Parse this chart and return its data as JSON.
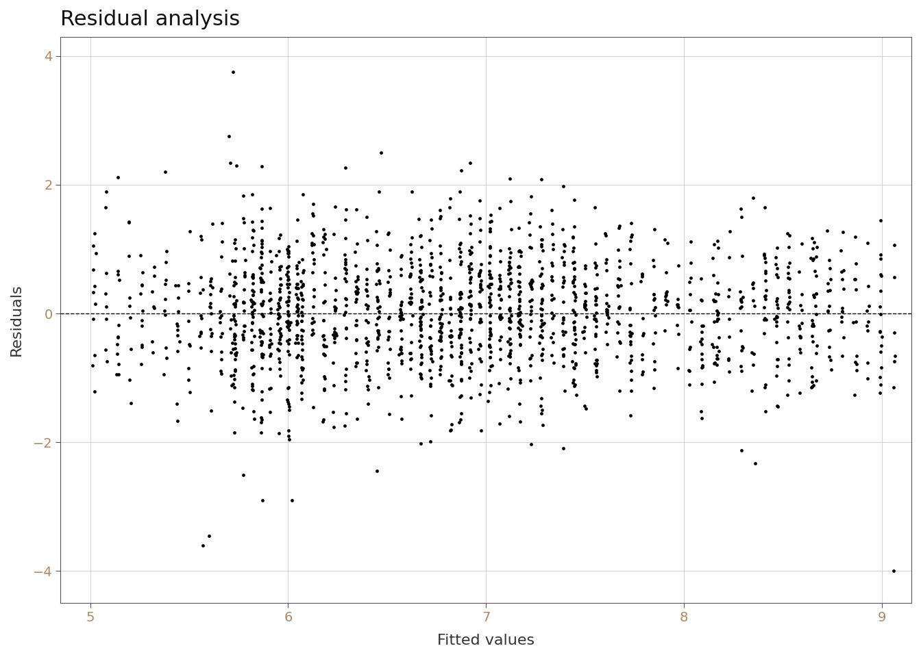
{
  "title": "Residual analysis",
  "xlabel": "Fitted values",
  "ylabel": "Residuals",
  "xlim": [
    4.85,
    9.15
  ],
  "ylim": [
    -4.5,
    4.3
  ],
  "xticks": [
    5,
    6,
    7,
    8,
    9
  ],
  "yticks": [
    -4,
    -2,
    0,
    2,
    4
  ],
  "background_color": "#ffffff",
  "panel_color": "#ffffff",
  "grid_color": "#d3d3d3",
  "dot_color": "#000000",
  "dot_size": 12,
  "dot_alpha": 1.0,
  "hline_y": 0,
  "hline_color": "#000000",
  "hline_style": "--",
  "hline_lw": 1.0,
  "title_fontsize": 22,
  "label_fontsize": 16,
  "tick_fontsize": 14,
  "tick_color": "#b08860",
  "seed": 42
}
